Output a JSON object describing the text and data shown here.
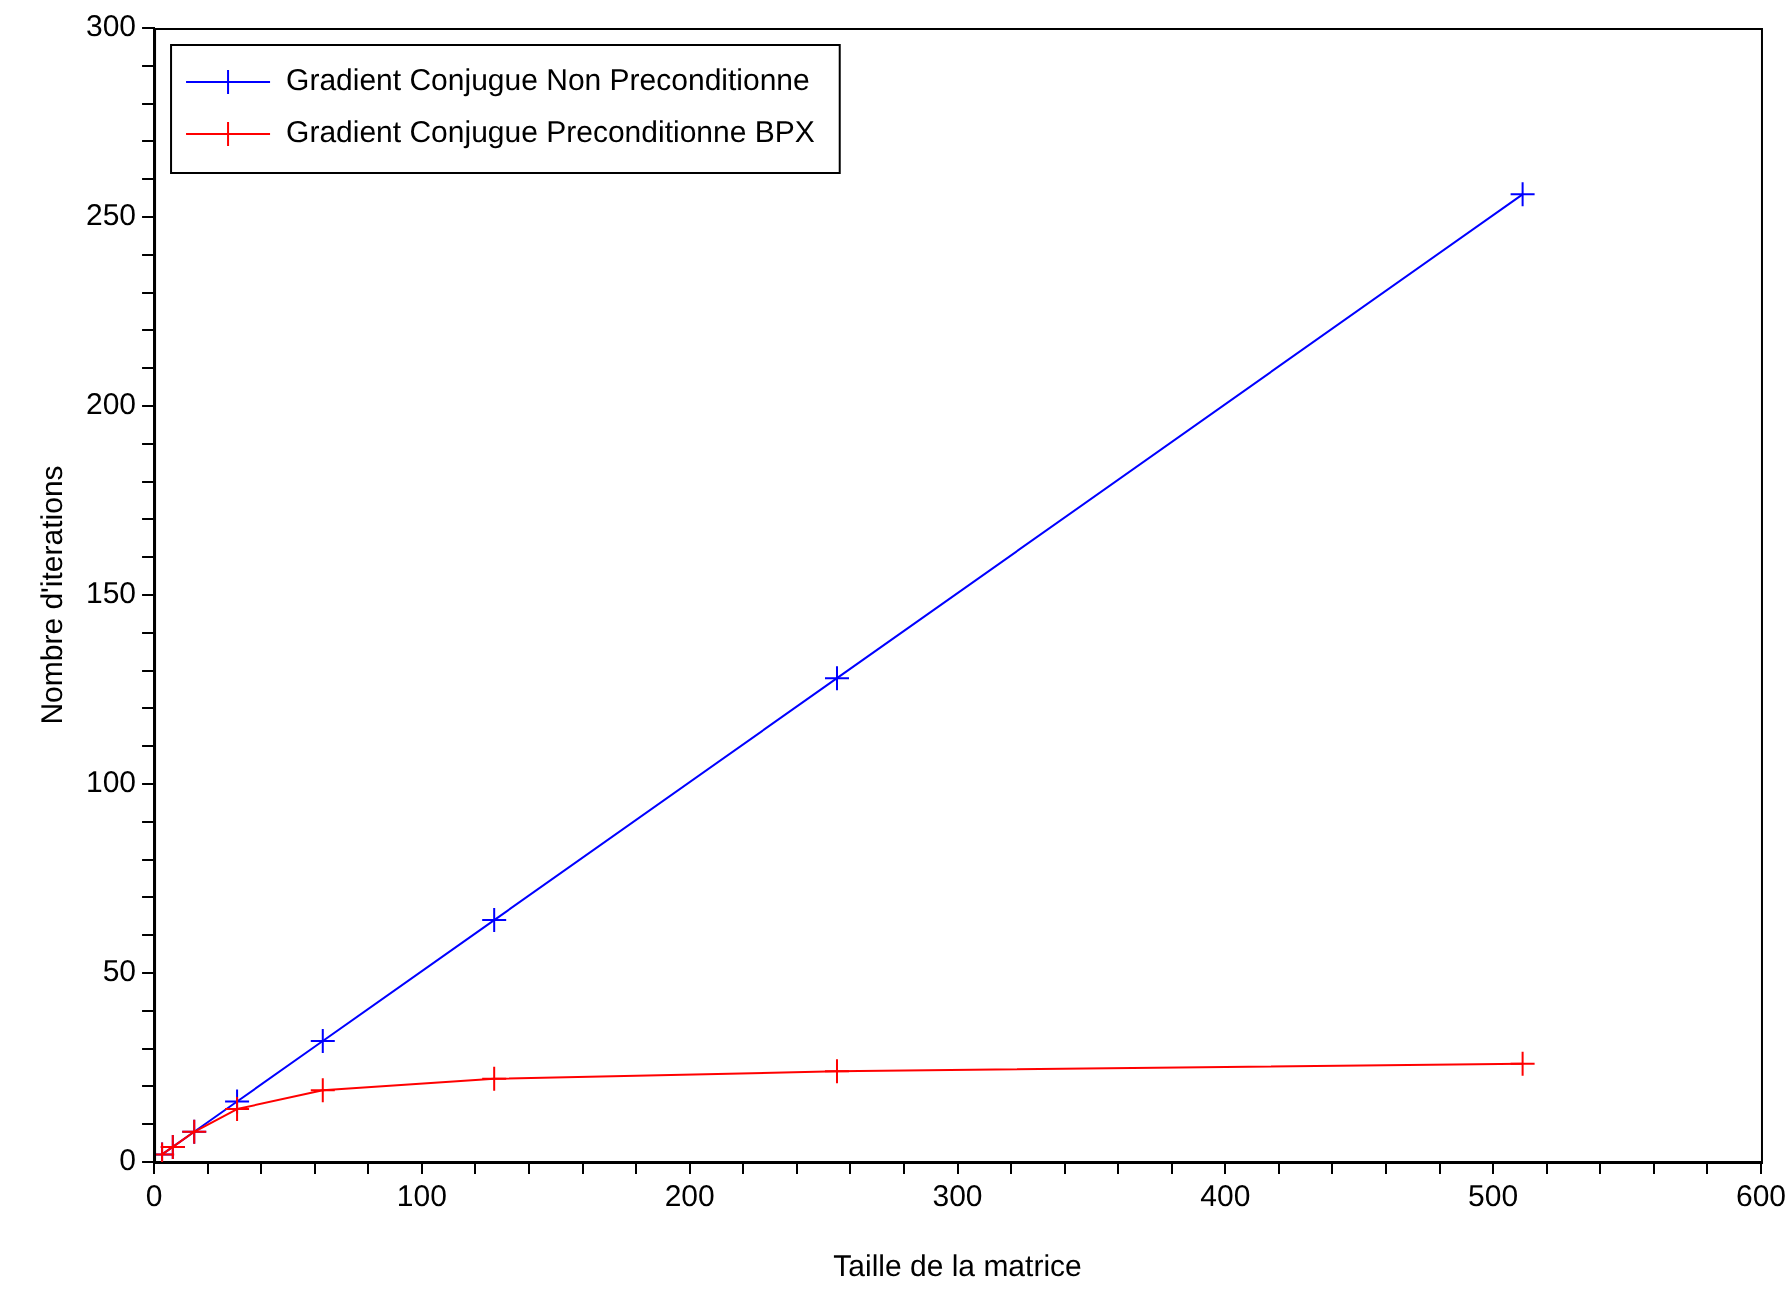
{
  "chart_data": {
    "type": "line",
    "xlabel": "Taille de la matrice",
    "ylabel": "Nombre d'iterations",
    "x": [
      3,
      7,
      15,
      31,
      63,
      127,
      255,
      511
    ],
    "series": [
      {
        "name": "Gradient Conjugue Non Preconditionne",
        "color": "#0000ff",
        "values": [
          2,
          4,
          8,
          16,
          32,
          64,
          128,
          256
        ]
      },
      {
        "name": "Gradient Conjugue Preconditionne BPX",
        "color": "#ff0000",
        "values": [
          2,
          4,
          8,
          14,
          19,
          22,
          24,
          26
        ]
      }
    ],
    "xlim": [
      0,
      600
    ],
    "xticks": [
      0,
      {
        "value": 20,
        "label": null
      },
      {
        "value": 40,
        "label": null
      },
      {
        "value": 60,
        "label": null
      },
      {
        "value": 80,
        "label": null
      },
      100,
      {
        "value": 120,
        "label": null
      },
      {
        "value": 140,
        "label": null
      },
      {
        "value": 160,
        "label": null
      },
      {
        "value": 180,
        "label": null
      },
      200,
      {
        "value": 220,
        "label": null
      },
      {
        "value": 240,
        "label": null
      },
      {
        "value": 260,
        "label": null
      },
      {
        "value": 280,
        "label": null
      },
      300,
      {
        "value": 320,
        "label": null
      },
      {
        "value": 340,
        "label": null
      },
      {
        "value": 360,
        "label": null
      },
      {
        "value": 380,
        "label": null
      },
      400,
      {
        "value": 420,
        "label": null
      },
      {
        "value": 440,
        "label": null
      },
      {
        "value": 460,
        "label": null
      },
      {
        "value": 480,
        "label": null
      },
      500,
      {
        "value": 520,
        "label": null
      },
      {
        "value": 540,
        "label": null
      },
      {
        "value": 560,
        "label": null
      },
      {
        "value": 580,
        "label": null
      },
      600
    ],
    "ylim": [
      0,
      300
    ],
    "yticks": [
      0,
      {
        "value": 10,
        "label": null
      },
      {
        "value": 20,
        "label": null
      },
      {
        "value": 30,
        "label": null
      },
      {
        "value": 40,
        "label": null
      },
      50,
      {
        "value": 60,
        "label": null
      },
      {
        "value": 70,
        "label": null
      },
      {
        "value": 80,
        "label": null
      },
      {
        "value": 90,
        "label": null
      },
      100,
      {
        "value": 110,
        "label": null
      },
      {
        "value": 120,
        "label": null
      },
      {
        "value": 130,
        "label": null
      },
      {
        "value": 140,
        "label": null
      },
      150,
      {
        "value": 160,
        "label": null
      },
      {
        "value": 170,
        "label": null
      },
      {
        "value": 180,
        "label": null
      },
      {
        "value": 190,
        "label": null
      },
      200,
      {
        "value": 210,
        "label": null
      },
      {
        "value": 220,
        "label": null
      },
      {
        "value": 230,
        "label": null
      },
      {
        "value": 240,
        "label": null
      },
      250,
      {
        "value": 260,
        "label": null
      },
      {
        "value": 270,
        "label": null
      },
      {
        "value": 280,
        "label": null
      },
      {
        "value": 290,
        "label": null
      },
      300
    ],
    "grid": false,
    "legend": "top left",
    "marker": "cross",
    "line_style": "solid"
  }
}
